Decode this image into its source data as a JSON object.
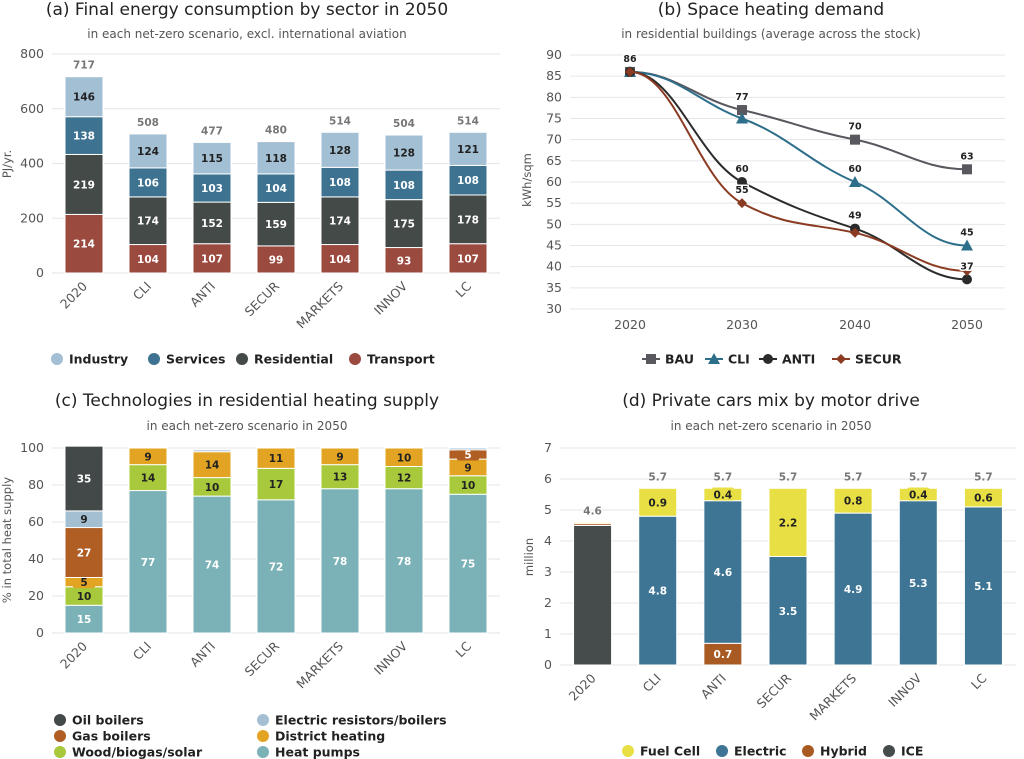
{
  "chart_data": [
    {
      "type": "bar",
      "stacked": true,
      "title": "(a) Final energy consumption by sector in 2050",
      "subtitle": "in each net-zero scenario, excl. international aviation",
      "ylabel": "PJ/yr.",
      "ylim": [
        0,
        800
      ],
      "yticks": [
        0,
        200,
        400,
        600,
        800
      ],
      "grid": true,
      "legend_position": "bottom",
      "categories": [
        "2020",
        "CLI",
        "ANTI",
        "SECUR",
        "MARKETS",
        "INNOV",
        "LC"
      ],
      "totals": [
        717,
        508,
        477,
        480,
        514,
        504,
        514
      ],
      "series": [
        {
          "name": "Transport",
          "color": "#9b4a3f",
          "values": [
            214,
            104,
            107,
            99,
            104,
            93,
            107
          ]
        },
        {
          "name": "Residential",
          "color": "#444a48",
          "values": [
            219,
            174,
            152,
            159,
            174,
            175,
            178
          ]
        },
        {
          "name": "Services",
          "color": "#3d7391",
          "values": [
            138,
            106,
            103,
            104,
            108,
            108,
            108
          ]
        },
        {
          "name": "Industry",
          "color": "#a2bfd3",
          "values": [
            146,
            124,
            115,
            118,
            128,
            128,
            121
          ]
        }
      ],
      "legend_order": [
        "Industry",
        "Services",
        "Residential",
        "Transport"
      ]
    },
    {
      "type": "line",
      "title": "(b) Space heating demand",
      "subtitle": "in residential buildings (average across the stock)",
      "ylabel": "kWh/sqm",
      "ylim": [
        30,
        90
      ],
      "yticks": [
        30,
        35,
        40,
        45,
        50,
        55,
        60,
        65,
        70,
        75,
        80,
        85,
        90
      ],
      "grid": true,
      "legend_position": "bottom",
      "x": [
        "2020",
        "2030",
        "2040",
        "2050"
      ],
      "series": [
        {
          "name": "BAU",
          "color": "#59585e",
          "marker": "square",
          "values": [
            86,
            77,
            70,
            63
          ],
          "labels": [
            "86",
            "77",
            "70",
            "63"
          ]
        },
        {
          "name": "CLI",
          "color": "#2d6f8b",
          "marker": "triangle",
          "values": [
            86,
            75,
            60,
            45
          ],
          "labels": [
            "",
            "",
            "60",
            "45"
          ]
        },
        {
          "name": "ANTI",
          "color": "#2b2b2b",
          "marker": "circle",
          "values": [
            86,
            60,
            49,
            37
          ],
          "labels": [
            "",
            "60",
            "49",
            "37"
          ]
        },
        {
          "name": "SECUR",
          "color": "#8b3b22",
          "marker": "diamond",
          "values": [
            86,
            55,
            48,
            39
          ],
          "labels": [
            "",
            "55",
            "",
            ""
          ]
        }
      ]
    },
    {
      "type": "bar",
      "stacked": true,
      "title": "(c) Technologies in residential heating supply",
      "subtitle": "in each net-zero scenario in 2050",
      "ylabel": "% in total heat supply",
      "ylim": [
        0,
        100
      ],
      "yticks": [
        0,
        20,
        40,
        60,
        80,
        100
      ],
      "grid": true,
      "legend_position": "bottom",
      "categories": [
        "2020",
        "CLI",
        "ANTI",
        "SECUR",
        "MARKETS",
        "INNOV",
        "LC"
      ],
      "series": [
        {
          "name": "Heat pumps",
          "color": "#7bb2b7",
          "values": [
            15,
            77,
            74,
            72,
            78,
            78,
            75
          ]
        },
        {
          "name": "Wood/biogas/solar",
          "color": "#a7c93b",
          "values": [
            10,
            14,
            10,
            17,
            13,
            12,
            10
          ]
        },
        {
          "name": "District heating",
          "color": "#e3a423",
          "values": [
            5,
            9,
            14,
            11,
            9,
            10,
            9
          ]
        },
        {
          "name": "Gas boilers",
          "color": "#b05e24",
          "values": [
            27,
            0,
            0,
            0,
            0,
            0,
            5
          ]
        },
        {
          "name": "Electric resistors/boilers",
          "color": "#a3bfd1",
          "values": [
            9,
            0,
            1,
            0,
            0,
            0,
            1
          ]
        },
        {
          "name": "Oil boilers",
          "color": "#434948",
          "values": [
            35,
            0,
            0,
            0,
            0,
            0,
            0
          ]
        }
      ],
      "legend_order": [
        "Oil boilers",
        "Electric resistors/boilers",
        "Gas boilers",
        "District heating",
        "Wood/biogas/solar",
        "Heat pumps"
      ]
    },
    {
      "type": "bar",
      "stacked": true,
      "title": "(d) Private cars mix by motor drive",
      "subtitle": "in each net-zero scenario in 2050",
      "ylabel": "million",
      "ylim": [
        0,
        7
      ],
      "yticks": [
        0,
        1,
        2,
        3,
        4,
        5,
        6,
        7
      ],
      "grid": true,
      "legend_position": "bottom",
      "categories": [
        "2020",
        "CLI",
        "ANTI",
        "SECUR",
        "MARKETS",
        "INNOV",
        "LC"
      ],
      "totals": [
        "4.6",
        "5.7",
        "5.7",
        "5.7",
        "5.7",
        "5.7",
        "5.7"
      ],
      "series": [
        {
          "name": "ICE",
          "color": "#454c4b",
          "values": [
            4.5,
            0,
            0,
            0,
            0,
            0,
            0
          ],
          "labels": [
            "",
            "",
            "",
            "",
            "",
            "",
            ""
          ]
        },
        {
          "name": "Hybrid",
          "color": "#a95a22",
          "values": [
            0.06,
            0,
            0.7,
            0,
            0,
            0,
            0
          ],
          "labels": [
            "",
            "",
            "0.7",
            "",
            "",
            "",
            ""
          ]
        },
        {
          "name": "Electric",
          "color": "#3e7594",
          "values": [
            0,
            4.8,
            4.6,
            3.5,
            4.9,
            5.3,
            5.1
          ],
          "labels": [
            "",
            "4.8",
            "4.6",
            "3.5",
            "4.9",
            "5.3",
            "5.1"
          ]
        },
        {
          "name": "Fuel Cell",
          "color": "#e8df45",
          "values": [
            0.04,
            0.9,
            0.4,
            2.2,
            0.8,
            0.4,
            0.6
          ],
          "labels": [
            "",
            "0.9",
            "0.4",
            "2.2",
            "0.8",
            "0.4",
            "0.6"
          ]
        }
      ],
      "legend_order": [
        "Fuel Cell",
        "Electric",
        "Hybrid",
        "ICE"
      ]
    }
  ]
}
